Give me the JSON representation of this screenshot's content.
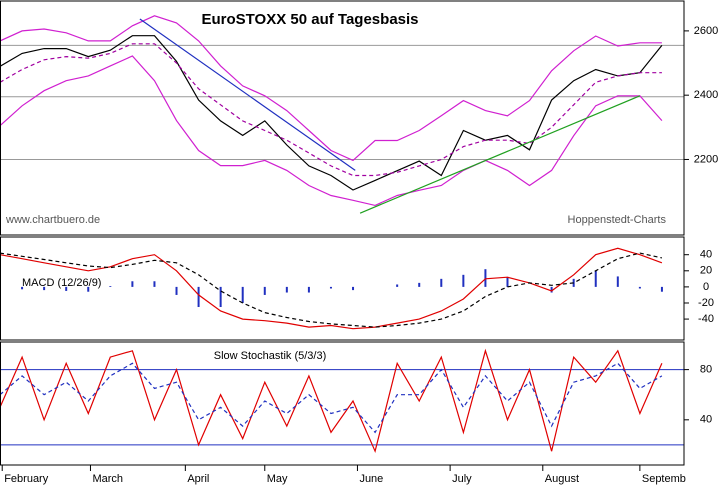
{
  "chart_data": [
    {
      "type": "line",
      "title": "EuroSTOXX 50 auf Tagesbasis",
      "annotations": [
        "www.chartbuero.de",
        "Hoppenstedt-Charts"
      ],
      "x": [
        0,
        5,
        10,
        15,
        20,
        25,
        30,
        35,
        40,
        45,
        50,
        55,
        60,
        65,
        70,
        75,
        80,
        85,
        90,
        95,
        100,
        105,
        110,
        115,
        120,
        125,
        130,
        135,
        140,
        145,
        150
      ],
      "xlim": [
        0,
        155
      ],
      "ylim": [
        1965,
        2693
      ],
      "yticks": [
        2200,
        2400,
        2600
      ],
      "hlines": [
        2555,
        2395,
        2200
      ],
      "hline_color": "#999999",
      "series": [
        {
          "color": "#000000",
          "values": [
            2490,
            2530,
            2545,
            2545,
            2520,
            2540,
            2585,
            2585,
            2505,
            2385,
            2320,
            2275,
            2320,
            2245,
            2180,
            2150,
            2105,
            2135,
            2165,
            2195,
            2150,
            2290,
            2260,
            2275,
            2230,
            2385,
            2445,
            2480,
            2460,
            2470,
            2555
          ]
        },
        {
          "color": "#d020d0",
          "values": [
            2569,
            2600,
            2606,
            2594,
            2569,
            2569,
            2616,
            2647,
            2625,
            2569,
            2491,
            2429,
            2398,
            2352,
            2290,
            2228,
            2197,
            2259,
            2259,
            2290,
            2336,
            2383,
            2352,
            2336,
            2383,
            2476,
            2538,
            2584,
            2553,
            2563,
            2563
          ]
        },
        {
          "color": "#d020d0",
          "values": [
            2305,
            2367,
            2414,
            2445,
            2460,
            2491,
            2522,
            2445,
            2321,
            2228,
            2181,
            2181,
            2197,
            2166,
            2119,
            2088,
            2073,
            2057,
            2088,
            2104,
            2119,
            2166,
            2197,
            2166,
            2119,
            2166,
            2274,
            2367,
            2398,
            2398,
            2321
          ]
        },
        {
          "color": "#a000a0",
          "dash": true,
          "values": [
            2440,
            2480,
            2510,
            2520,
            2515,
            2530,
            2560,
            2560,
            2500,
            2420,
            2370,
            2320,
            2290,
            2260,
            2220,
            2180,
            2150,
            2150,
            2160,
            2180,
            2200,
            2240,
            2260,
            2260,
            2250,
            2300,
            2370,
            2440,
            2460,
            2470,
            2470
          ]
        }
      ],
      "trendlines": [
        {
          "color": "#2030c0",
          "x": [
            31.7,
            80.5
          ],
          "y": [
            2637,
            2166
          ]
        },
        {
          "color": "#20a020",
          "x": [
            81.6,
            145
          ],
          "y": [
            2033,
            2398
          ]
        }
      ]
    },
    {
      "type": "line",
      "label": "MACD (12/26/9)",
      "x": [
        0,
        5,
        10,
        15,
        20,
        25,
        30,
        35,
        40,
        45,
        50,
        55,
        60,
        65,
        70,
        75,
        80,
        85,
        90,
        95,
        100,
        105,
        110,
        115,
        120,
        125,
        130,
        135,
        140,
        145,
        150
      ],
      "xlim": [
        0,
        155
      ],
      "ylim": [
        -66,
        62
      ],
      "yticks": [
        -40,
        -20,
        0,
        20,
        40
      ],
      "series": [
        {
          "color": "#2030c0",
          "kind": "bar",
          "values": [
            -2,
            -3,
            -4,
            -5,
            -6,
            1,
            7,
            7,
            -10,
            -25,
            -25,
            -20,
            -10,
            -7,
            -7,
            -2,
            -4,
            0,
            3,
            5,
            10,
            15,
            22,
            12,
            0,
            -7,
            10,
            20,
            13,
            -2,
            -6
          ]
        },
        {
          "color": "#e00000",
          "values": [
            40,
            35,
            30,
            25,
            20,
            25,
            35,
            40,
            20,
            -10,
            -30,
            -40,
            -42,
            -45,
            -50,
            -48,
            -52,
            -50,
            -45,
            -40,
            -30,
            -15,
            10,
            12,
            5,
            -5,
            15,
            40,
            48,
            40,
            30
          ]
        },
        {
          "color": "#000000",
          "dash": true,
          "values": [
            42,
            38,
            34,
            30,
            26,
            24,
            28,
            33,
            30,
            15,
            -5,
            -20,
            -32,
            -38,
            -43,
            -46,
            -48,
            -50,
            -48,
            -45,
            -40,
            -30,
            -12,
            0,
            5,
            2,
            5,
            20,
            35,
            42,
            36
          ]
        }
      ]
    },
    {
      "type": "line",
      "label": "Slow Stochastik (5/3/3)",
      "x": [
        0,
        5,
        10,
        15,
        20,
        25,
        30,
        35,
        40,
        45,
        50,
        55,
        60,
        65,
        70,
        75,
        80,
        85,
        90,
        95,
        100,
        105,
        110,
        115,
        120,
        125,
        130,
        135,
        140,
        145,
        150
      ],
      "xlim": [
        0,
        155
      ],
      "ylim": [
        4,
        102
      ],
      "yticks": [
        40,
        80
      ],
      "hlines": [
        20,
        80
      ],
      "hline_color": "#2030c0",
      "xticks": [
        {
          "value": 0.5,
          "label": "February"
        },
        {
          "value": 20.5,
          "label": "March"
        },
        {
          "value": 42,
          "label": "April"
        },
        {
          "value": 60,
          "label": "May"
        },
        {
          "value": 81,
          "label": "June"
        },
        {
          "value": 102,
          "label": "July"
        },
        {
          "value": 123,
          "label": "August"
        },
        {
          "value": 145,
          "label": "Septemb"
        }
      ],
      "series": [
        {
          "color": "#e00000",
          "values": [
            50,
            90,
            40,
            85,
            45,
            90,
            95,
            40,
            80,
            20,
            60,
            25,
            70,
            35,
            75,
            30,
            55,
            15,
            85,
            55,
            90,
            30,
            95,
            40,
            80,
            15,
            90,
            70,
            95,
            45,
            85
          ]
        },
        {
          "color": "#2030c0",
          "dash": true,
          "values": [
            60,
            75,
            60,
            70,
            55,
            75,
            85,
            65,
            70,
            40,
            50,
            35,
            55,
            45,
            60,
            45,
            50,
            30,
            60,
            60,
            80,
            50,
            75,
            55,
            70,
            35,
            70,
            75,
            85,
            65,
            75
          ]
        }
      ]
    }
  ]
}
